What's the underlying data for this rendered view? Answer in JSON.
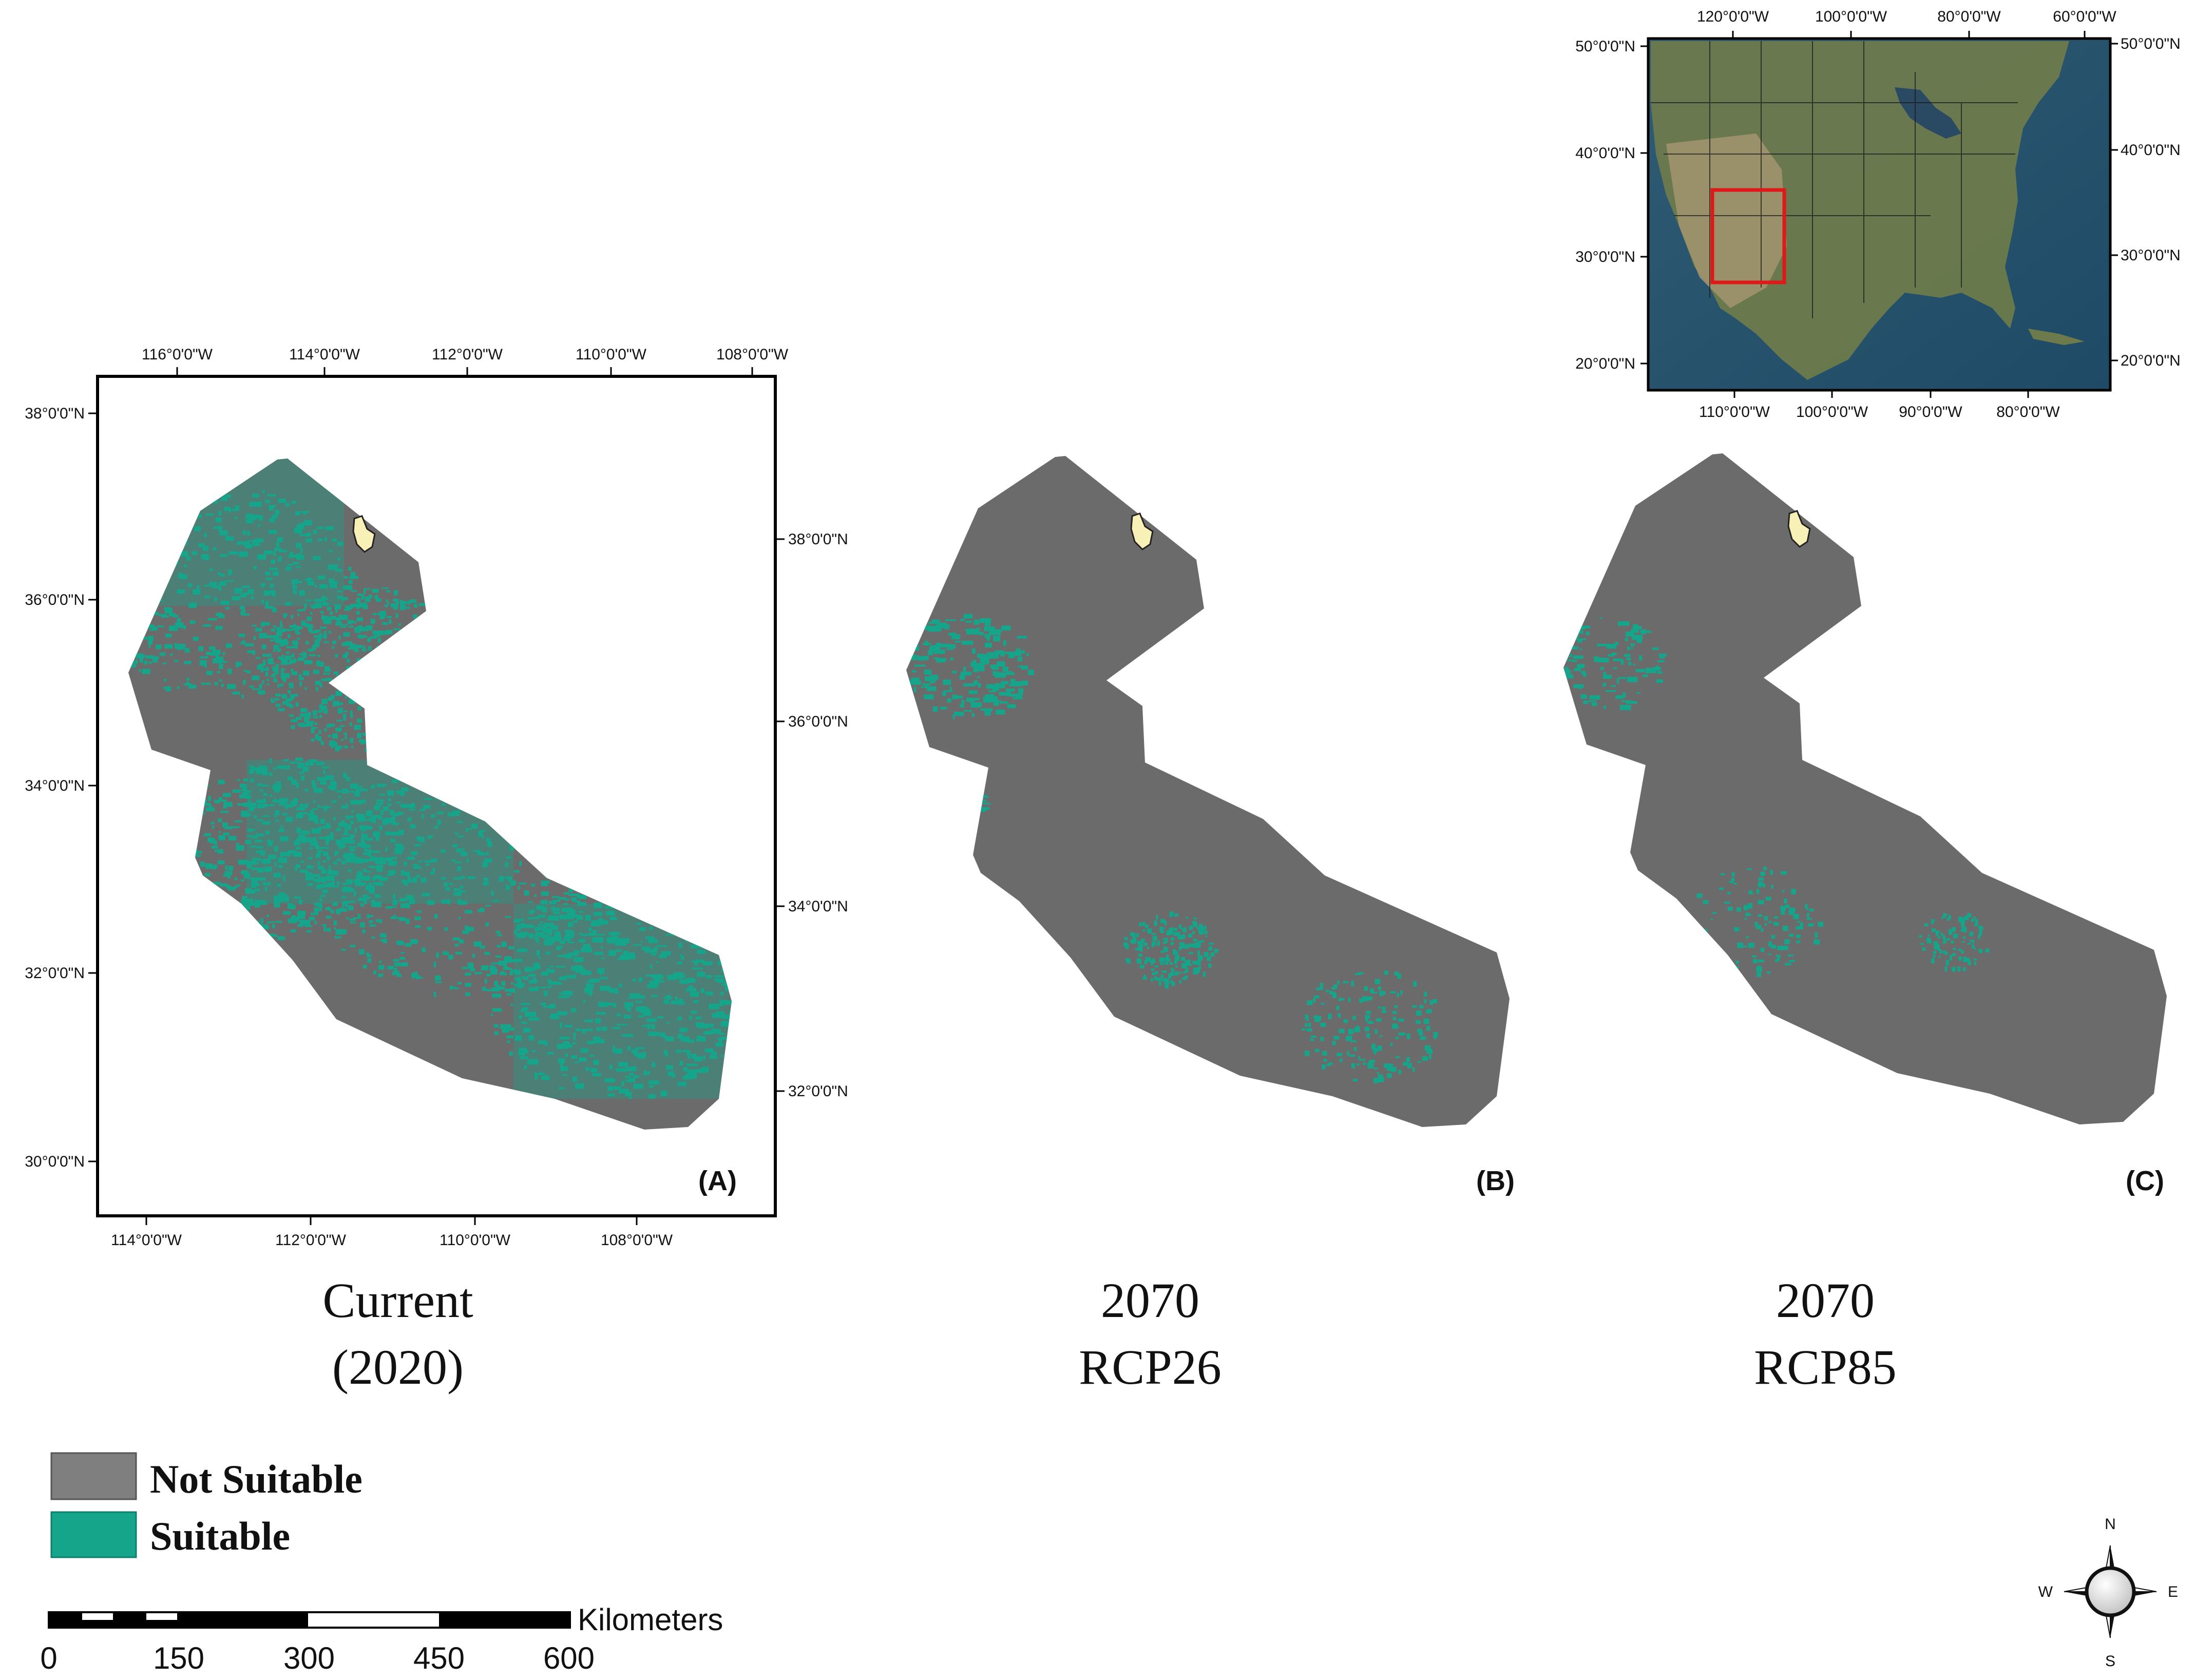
{
  "colors": {
    "not_suitable": "#6b6b6b",
    "suitable": "#14a58a",
    "study_area_marker": "#f7f1b8",
    "inset_box": "#e01818",
    "frame": "#000000"
  },
  "panels": [
    {
      "id": "A",
      "tag": "(A)",
      "caption_line1": "Current",
      "caption_line2": "(2020)",
      "top_ticks": [
        "116°0'0\"W",
        "114°0'0\"W",
        "112°0'0\"W",
        "110°0'0\"W",
        "108°0'0\"W"
      ],
      "bottom_ticks": [
        "114°0'0\"W",
        "112°0'0\"W",
        "110°0'0\"W",
        "108°0'0\"W"
      ],
      "left_ticks": [
        "38°0'0\"N",
        "36°0'0\"N",
        "34°0'0\"N",
        "32°0'0\"N",
        "30°0'0\"N"
      ],
      "right_ticks": [
        "38°0'0\"N",
        "36°0'0\"N",
        "34°0'0\"N",
        "32°0'0\"N"
      ],
      "suitability": "high"
    },
    {
      "id": "B",
      "tag": "(B)",
      "caption_line1": "2070",
      "caption_line2": "RCP26",
      "suitability": "low"
    },
    {
      "id": "C",
      "tag": "(C)",
      "caption_line1": "2070",
      "caption_line2": "RCP85",
      "suitability": "very_low"
    }
  ],
  "inset": {
    "top_ticks": [
      "120°0'0\"W",
      "100°0'0\"W",
      "80°0'0\"W",
      "60°0'0\"W"
    ],
    "bottom_ticks": [
      "110°0'0\"W",
      "100°0'0\"W",
      "90°0'0\"W",
      "80°0'0\"W"
    ],
    "left_ticks": [
      "50°0'0\"N",
      "40°0'0\"N",
      "30°0'0\"N",
      "20°0'0\"N"
    ],
    "right_ticks": [
      "50°0'0\"N",
      "40°0'0\"N",
      "30°0'0\"N",
      "20°0'0\"N"
    ]
  },
  "legend": {
    "items": [
      {
        "label": "Not Suitable",
        "color": "#7f7f7f"
      },
      {
        "label": "Suitable",
        "color": "#14a58a"
      }
    ]
  },
  "scale_bar": {
    "unit": "Kilometers",
    "labels": [
      "0",
      "150",
      "300",
      "450",
      "600"
    ]
  },
  "compass": {
    "n": "N",
    "s": "S",
    "e": "E",
    "w": "W"
  }
}
